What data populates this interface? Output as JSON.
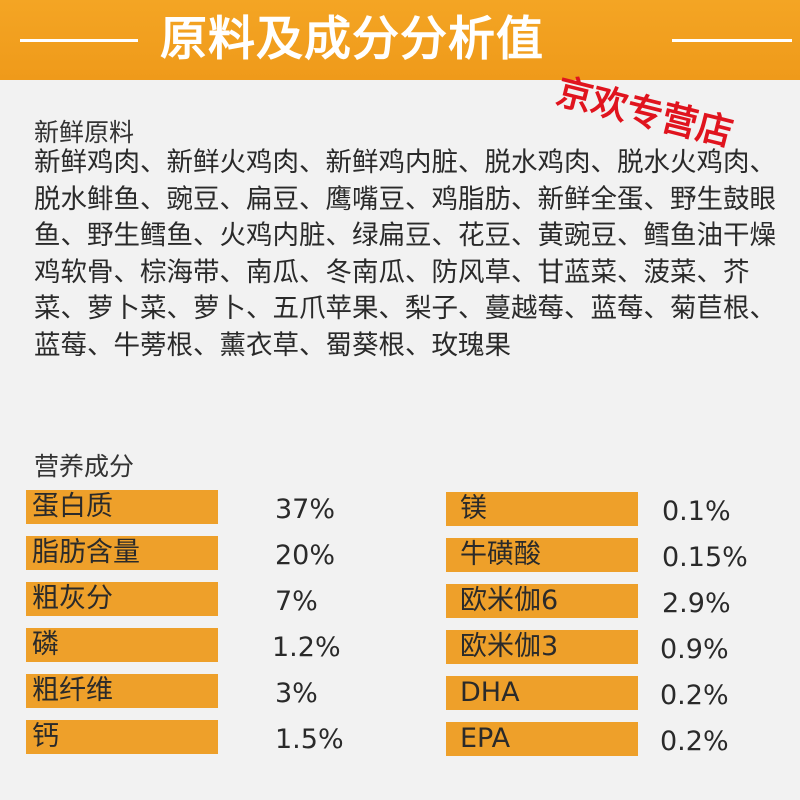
{
  "header": {
    "title": "原料及成分分析值",
    "watermark": "京欢专营店"
  },
  "ingredients": {
    "heading": "新鲜原料",
    "text": "新鲜鸡肉、新鲜火鸡肉、新鲜鸡内脏、脱水鸡肉、脱水火鸡肉、脱水鲱鱼、豌豆、扁豆、鹰嘴豆、鸡脂肪、新鲜全蛋、野生鼓眼鱼、野生鳕鱼、火鸡内脏、绿扁豆、花豆、黄豌豆、鳕鱼油干燥鸡软骨、棕海带、南瓜、冬南瓜、防风草、甘蓝菜、菠菜、芥菜、萝卜菜、萝卜、五爪苹果、梨子、蔓越莓、蓝莓、菊苣根、蓝莓、牛蒡根、薰衣草、蜀葵根、玫瑰果"
  },
  "nutrition": {
    "heading": "营养成分",
    "left": [
      {
        "label": "蛋白质",
        "value": "37%"
      },
      {
        "label": "脂肪含量",
        "value": "20%"
      },
      {
        "label": "粗灰分",
        "value": "7%"
      },
      {
        "label": "磷",
        "value": "1.2%"
      },
      {
        "label": "粗纤维",
        "value": "3%"
      },
      {
        "label": "钙",
        "value": "1.5%"
      }
    ],
    "right": [
      {
        "label": "镁",
        "value": "0.1%"
      },
      {
        "label": "牛磺酸",
        "value": "0.15%"
      },
      {
        "label": "欧米伽6",
        "value": "2.9%"
      },
      {
        "label": "欧米伽3",
        "value": "0.9%"
      },
      {
        "label": "DHA",
        "value": "0.2%"
      },
      {
        "label": "EPA",
        "value": "0.2%"
      }
    ]
  },
  "colors": {
    "banner": "#f4a524",
    "bar": "#eea02a",
    "watermark": "#e0141e",
    "background": "#f2f2f2"
  }
}
